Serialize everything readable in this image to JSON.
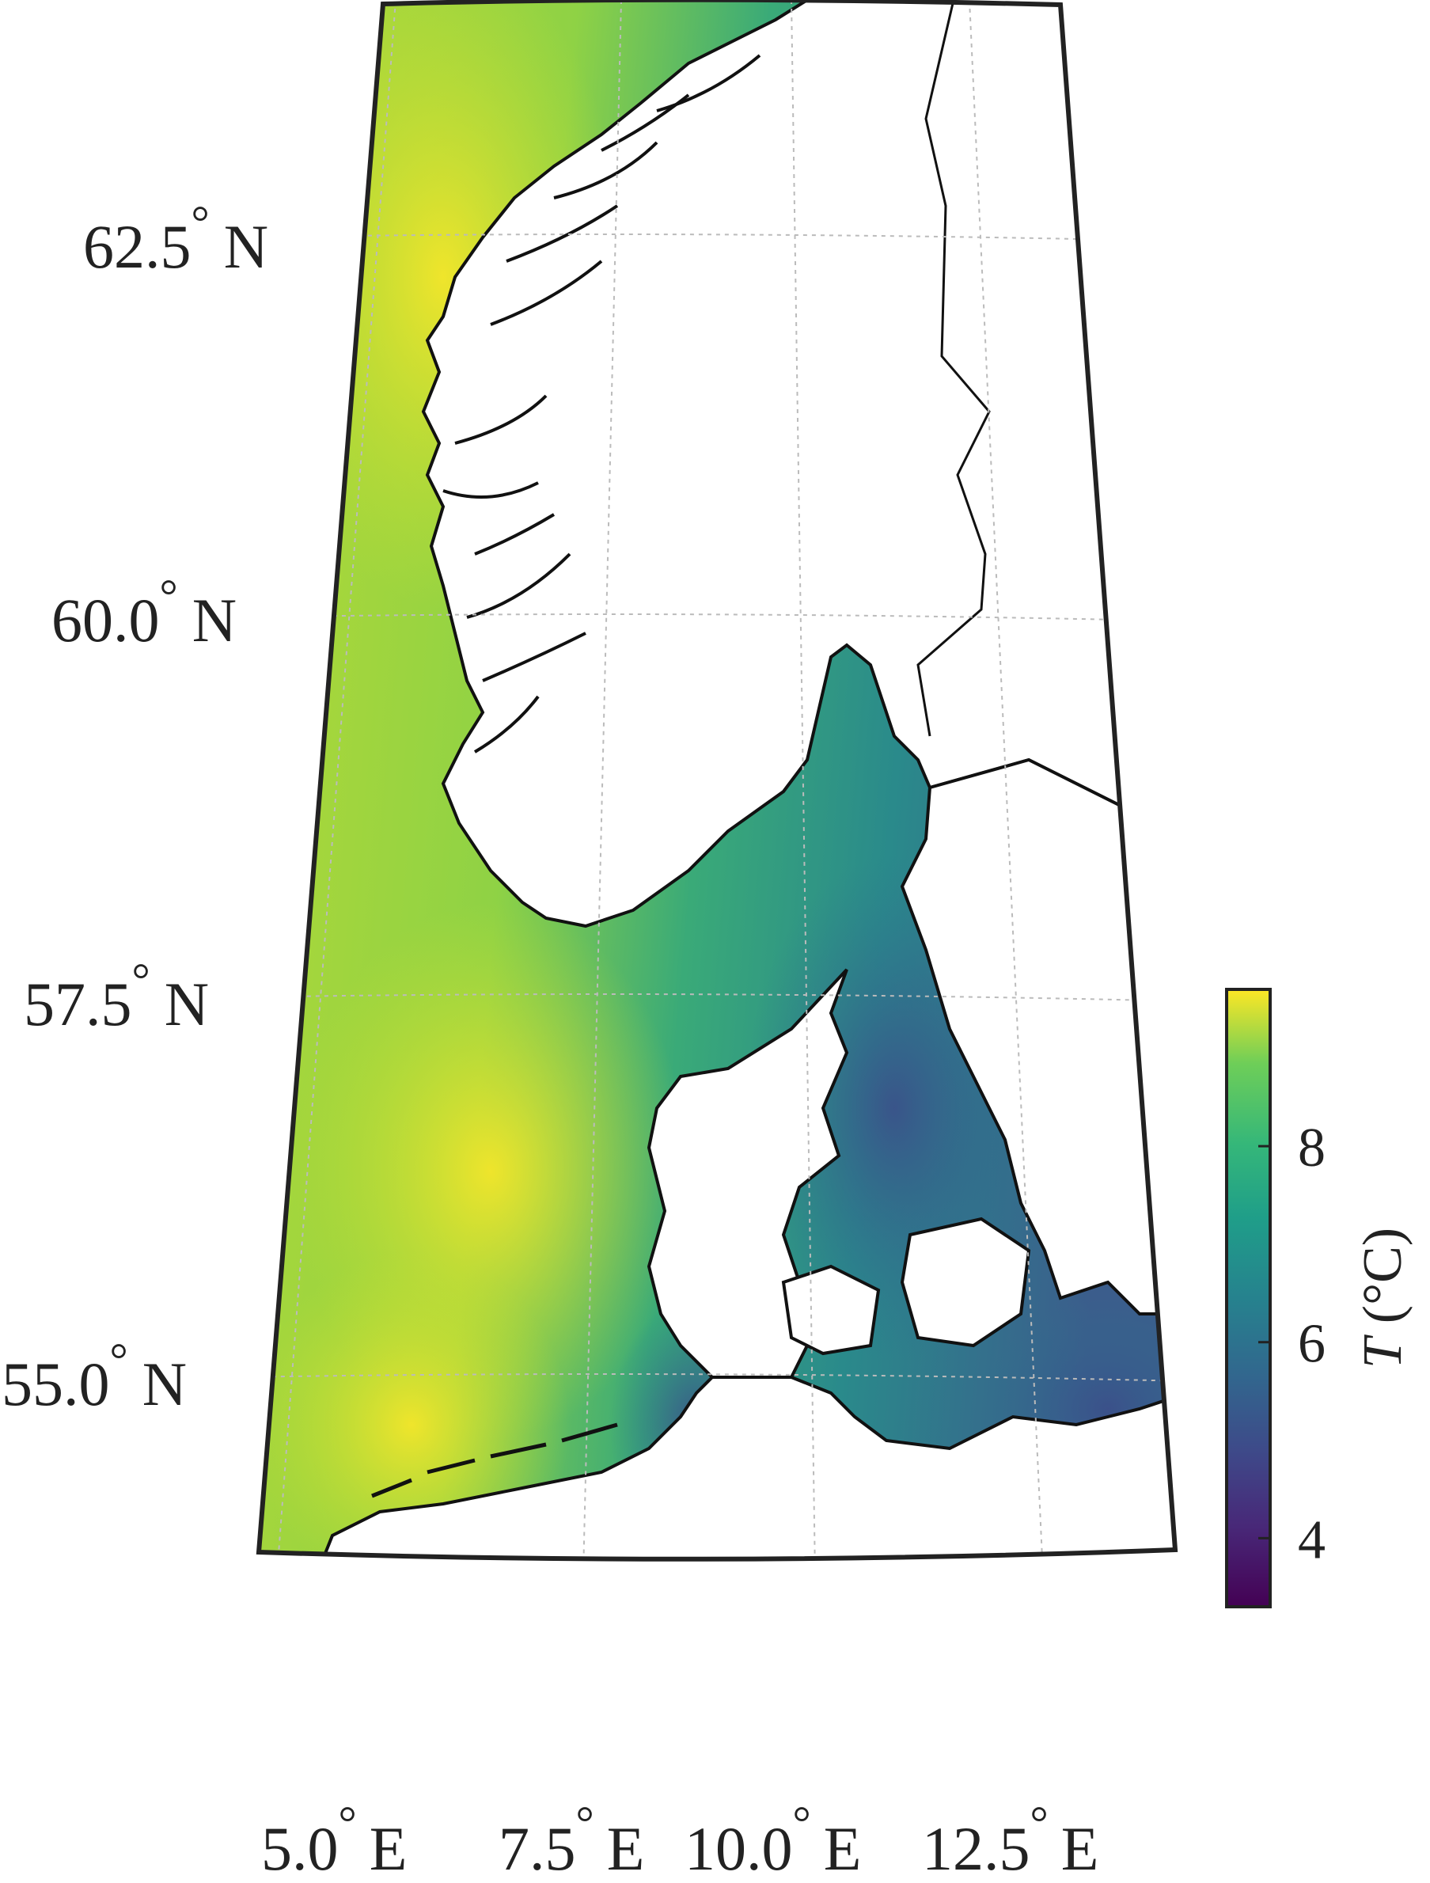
{
  "map": {
    "region": "North Sea / Skagerrak / Kattegat",
    "projection": "conic",
    "grid": true,
    "lat_labels": [
      {
        "text": "62.5",
        "unit": "N",
        "value": 62.5
      },
      {
        "text": "60.0",
        "unit": "N",
        "value": 60.0
      },
      {
        "text": "57.5",
        "unit": "N",
        "value": 57.5
      },
      {
        "text": "55.0",
        "unit": "N",
        "value": 55.0
      }
    ],
    "lon_labels": [
      {
        "text": "5.0",
        "unit": "E",
        "value": 5.0
      },
      {
        "text": "7.5",
        "unit": "E",
        "value": 7.5
      },
      {
        "text": "10.0",
        "unit": "E",
        "value": 10.0
      },
      {
        "text": "12.5",
        "unit": "E",
        "value": 12.5
      }
    ],
    "degree_symbol": "°"
  },
  "colorbar": {
    "label_italic": "T",
    "label_unit": "(°C)",
    "ticks": [
      "4",
      "6",
      "8"
    ],
    "tick_values": [
      4,
      6,
      8
    ],
    "range": [
      3.3,
      9.6
    ],
    "colormap": "viridis",
    "colors": {
      "low": "#440154",
      "mid_low": "#31688e",
      "mid": "#21918c",
      "mid_high": "#5ec962",
      "high": "#fde725"
    }
  },
  "colors": {
    "land": "#ffffff",
    "coast": "#111111",
    "frame": "#222222",
    "gridline": "#bbbbbb"
  }
}
